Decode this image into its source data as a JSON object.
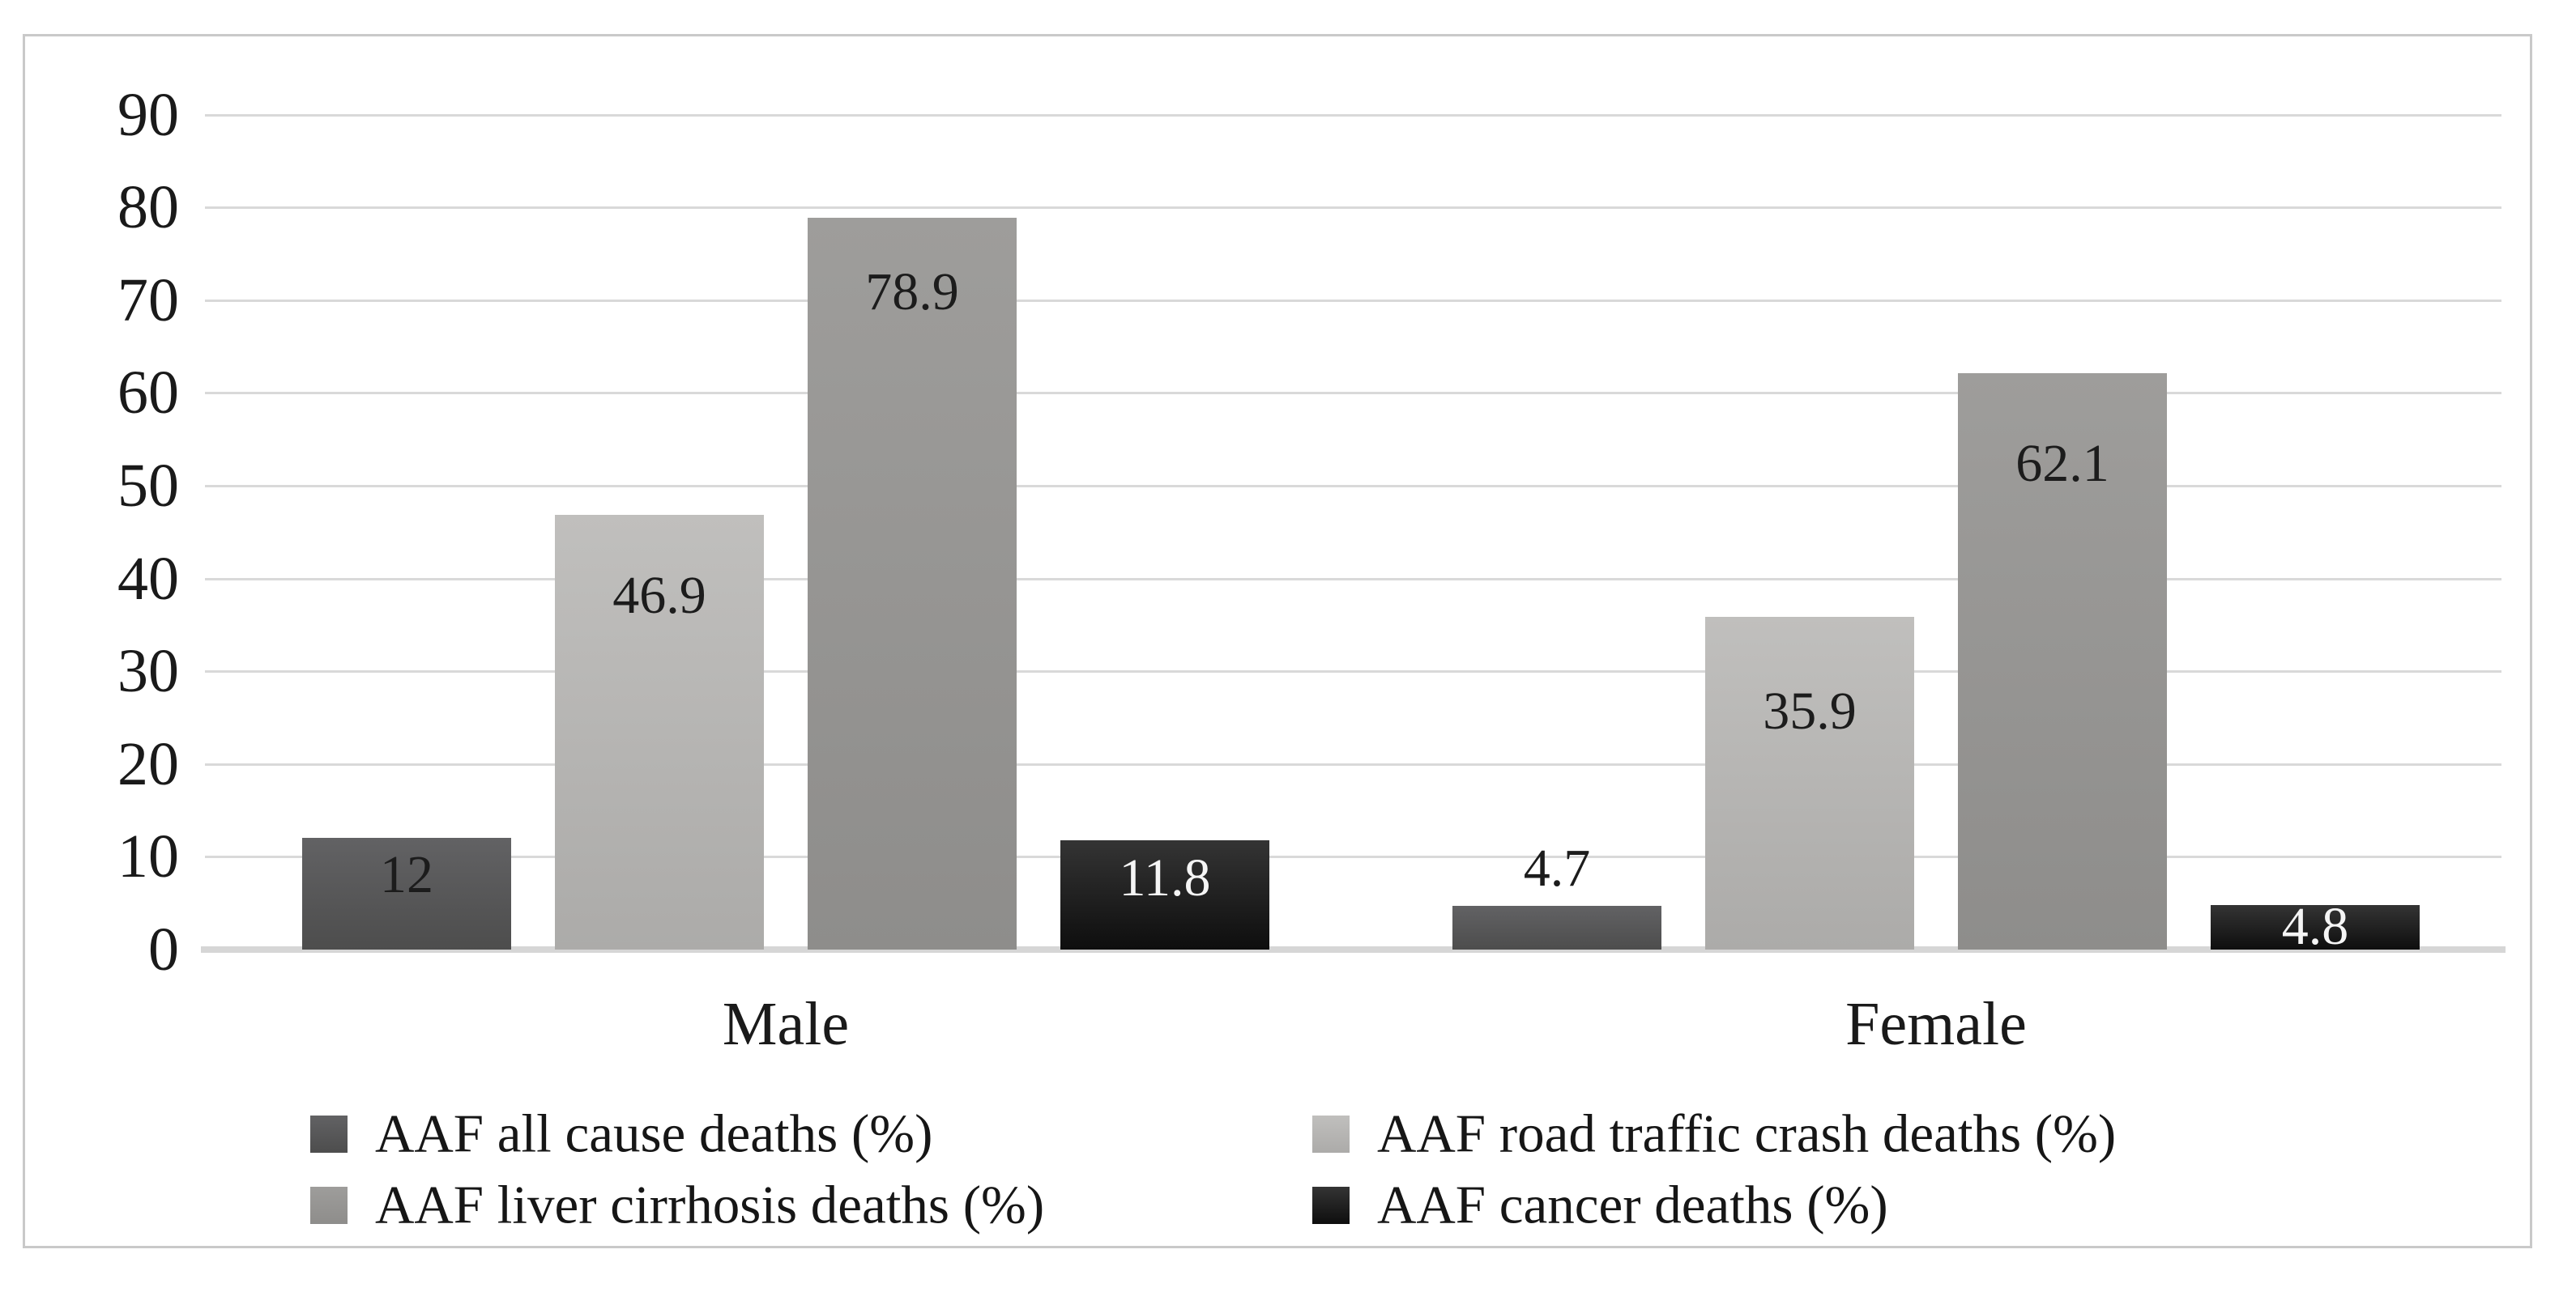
{
  "chart_data": {
    "type": "bar",
    "title": "",
    "xlabel": "",
    "ylabel": "",
    "categories": [
      "Male",
      "Female"
    ],
    "series": [
      {
        "name": "AAF all cause deaths (%)",
        "values": [
          12,
          4.7
        ],
        "value_labels": [
          "12",
          "4.7"
        ],
        "color_top": "#626264",
        "color_bottom": "#4d4d4d",
        "label_color": "#1c1c1c",
        "label_placements": [
          "inside",
          "above"
        ],
        "label_offsets": [
          46,
          -46
        ]
      },
      {
        "name": "AAF road traffic crash deaths (%)",
        "values": [
          46.9,
          35.9
        ],
        "value_labels": [
          "46.9",
          "35.9"
        ],
        "color_top": "#c0bfbd",
        "color_bottom": "#acaba9",
        "label_color": "#1c1c1c",
        "label_placements": [
          "inside",
          "inside"
        ],
        "label_offsets": [
          100,
          117
        ]
      },
      {
        "name": "AAF liver cirrhosis deaths (%)",
        "values": [
          78.9,
          62.1
        ],
        "value_labels": [
          "78.9",
          "62.1"
        ],
        "color_top": "#9e9d9b",
        "color_bottom": "#8e8d8b",
        "label_color": "#1c1c1c",
        "label_placements": [
          "inside",
          "inside"
        ],
        "label_offsets": [
          92,
          112
        ]
      },
      {
        "name": "AAF cancer deaths (%)",
        "values": [
          11.8,
          4.8
        ],
        "value_labels": [
          "11.8",
          "4.8"
        ],
        "color_top": "#343434",
        "color_bottom": "#0e0e0e",
        "label_color": "#f5f5f5",
        "label_placements": [
          "inside",
          "inside"
        ],
        "label_offsets": [
          47,
          27
        ]
      }
    ],
    "y_axis": {
      "min": 0,
      "max": 90,
      "tick_labels": [
        "90",
        "80",
        "70",
        "60",
        "50",
        "40",
        "30",
        "20",
        "10",
        "0"
      ],
      "grid": true
    },
    "legend": {
      "position": "bottom",
      "columns": 2
    }
  },
  "colors": {
    "background": "#ffffff",
    "frame_border": "#c9c9c9",
    "gridline": "#d9d9d9",
    "axis_line": "#d6d6d6",
    "text": "#1a1a1a"
  }
}
